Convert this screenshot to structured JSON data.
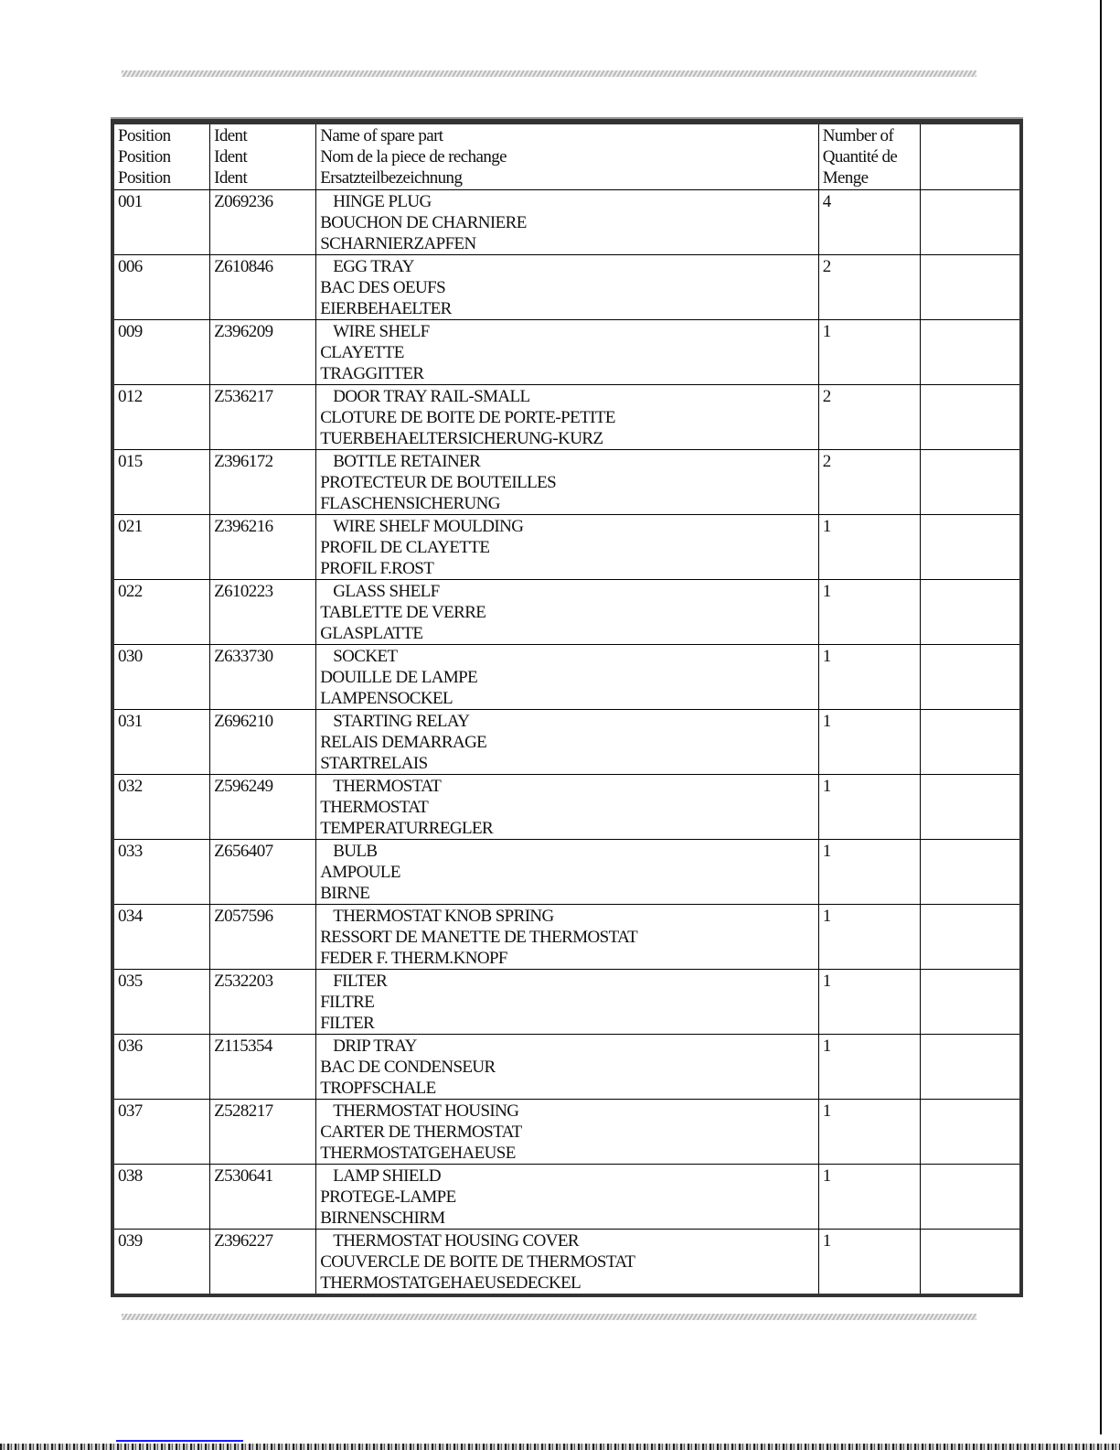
{
  "header": {
    "position": [
      "Position",
      "Position",
      "Position"
    ],
    "ident": [
      "Ident",
      "Ident",
      "Ident"
    ],
    "name": [
      "Name of spare part",
      "Nom de la piece de rechange",
      "Ersatzteilbezeichnung"
    ],
    "quantity": [
      "Number of",
      "Quantité de",
      "Menge"
    ]
  },
  "rows": [
    {
      "pos": "001",
      "ident": "Z069236",
      "en": "HINGE PLUG",
      "fr": "BOUCHON DE CHARNIERE",
      "de": "SCHARNIERZAPFEN",
      "qty": "4"
    },
    {
      "pos": "006",
      "ident": "Z610846",
      "en": "EGG TRAY",
      "fr": "BAC DES OEUFS",
      "de": "EIERBEHAELTER",
      "qty": "2"
    },
    {
      "pos": "009",
      "ident": "Z396209",
      "en": "WIRE SHELF",
      "fr": "CLAYETTE",
      "de": "TRAGGITTER",
      "qty": "1"
    },
    {
      "pos": "012",
      "ident": "Z536217",
      "en": "DOOR TRAY RAIL-SMALL",
      "fr": "CLOTURE DE BOITE DE PORTE-PETITE",
      "de": "TUERBEHAELTERSICHERUNG-KURZ",
      "qty": "2"
    },
    {
      "pos": "015",
      "ident": "Z396172",
      "en": "BOTTLE RETAINER",
      "fr": "PROTECTEUR DE BOUTEILLES",
      "de": "FLASCHENSICHERUNG",
      "qty": "2"
    },
    {
      "pos": "021",
      "ident": "Z396216",
      "en": "WIRE SHELF MOULDING",
      "fr": "PROFIL DE CLAYETTE",
      "de": "PROFIL F.ROST",
      "qty": "1"
    },
    {
      "pos": "022",
      "ident": "Z610223",
      "en": "GLASS SHELF",
      "fr": "TABLETTE DE VERRE",
      "de": "GLASPLATTE",
      "qty": "1"
    },
    {
      "pos": "030",
      "ident": "Z633730",
      "en": "SOCKET",
      "fr": "DOUILLE DE LAMPE",
      "de": "LAMPENSOCKEL",
      "qty": "1"
    },
    {
      "pos": "031",
      "ident": "Z696210",
      "en": "STARTING RELAY",
      "fr": "RELAIS DEMARRAGE",
      "de": "STARTRELAIS",
      "qty": "1"
    },
    {
      "pos": "032",
      "ident": "Z596249",
      "en": "THERMOSTAT",
      "fr": "THERMOSTAT",
      "de": "TEMPERATURREGLER",
      "qty": "1"
    },
    {
      "pos": "033",
      "ident": "Z656407",
      "en": "BULB",
      "fr": "AMPOULE",
      "de": "BIRNE",
      "qty": "1"
    },
    {
      "pos": "034",
      "ident": "Z057596",
      "en": "THERMOSTAT KNOB SPRING",
      "fr": "RESSORT DE MANETTE DE THERMOSTAT",
      "de": "FEDER F. THERM.KNOPF",
      "qty": "1"
    },
    {
      "pos": "035",
      "ident": "Z532203",
      "en": "FILTER",
      "fr": "FILTRE",
      "de": "FILTER",
      "qty": "1"
    },
    {
      "pos": "036",
      "ident": "Z115354",
      "en": "DRIP TRAY",
      "fr": "BAC DE CONDENSEUR",
      "de": "TROPFSCHALE",
      "qty": "1"
    },
    {
      "pos": "037",
      "ident": "Z528217",
      "en": "THERMOSTAT HOUSING",
      "fr": "CARTER DE THERMOSTAT",
      "de": "THERMOSTATGEHAEUSE",
      "qty": "1"
    },
    {
      "pos": "038",
      "ident": "Z530641",
      "en": "LAMP SHIELD",
      "fr": "PROTEGE-LAMPE",
      "de": "BIRNENSCHIRM",
      "qty": "1"
    },
    {
      "pos": "039",
      "ident": "Z396227",
      "en": "THERMOSTAT HOUSING COVER",
      "fr": "COUVERCLE DE BOITE DE THERMOSTAT",
      "de": "THERMOSTATGEHAEUSEDECKEL",
      "qty": "1"
    }
  ]
}
